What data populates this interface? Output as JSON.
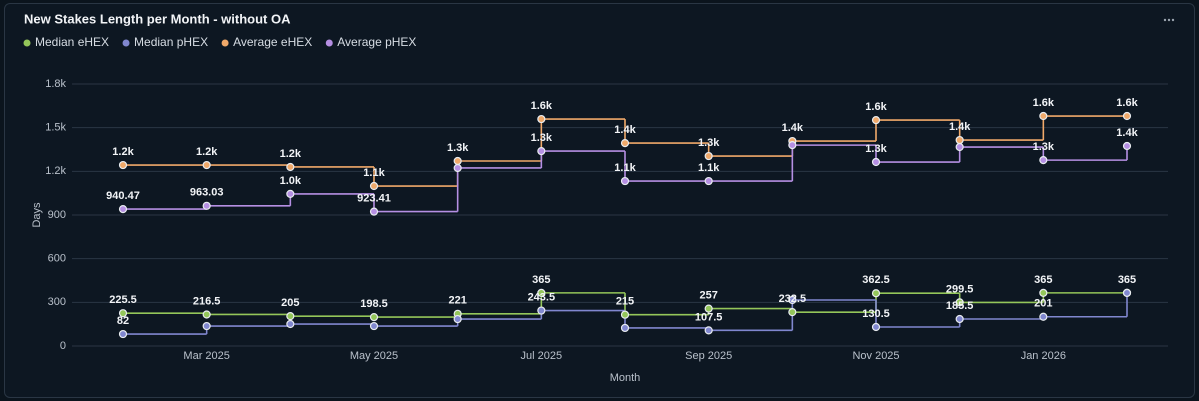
{
  "chart_data": {
    "type": "step-line",
    "title": "New Stakes Length per Month - without OA",
    "x_label": "Month",
    "y_label": "Days",
    "x": [
      "2025-02",
      "2025-03",
      "2025-04",
      "2025-05",
      "2025-06",
      "2025-07",
      "2025-08",
      "2025-09",
      "2025-10",
      "2025-11",
      "2025-12",
      "2026-01",
      "2026-02"
    ],
    "xticks": [
      {
        "value": "2025-03",
        "label": "Mar 2025"
      },
      {
        "value": "2025-05",
        "label": "May 2025"
      },
      {
        "value": "2025-07",
        "label": "Jul 2025"
      },
      {
        "value": "2025-09",
        "label": "Sep 2025"
      },
      {
        "value": "2025-11",
        "label": "Nov 2025"
      },
      {
        "value": "2026-01",
        "label": "Jan 2026"
      }
    ],
    "ylim": [
      0,
      1800
    ],
    "yticks": [
      0,
      300,
      600,
      900,
      {
        "value": 1200,
        "label": "1.2k"
      },
      {
        "value": 1500,
        "label": "1.5k"
      },
      {
        "value": 1800,
        "label": "1.8k"
      }
    ],
    "grid": true,
    "legend": "top-left",
    "series": [
      {
        "name": "Median eHEX",
        "color": "#94c65a",
        "values": [
          225.5,
          216.5,
          205,
          198.5,
          221,
          365,
          215,
          257,
          232.5,
          362.5,
          299.5,
          365,
          365
        ],
        "value_labels": [
          "225.5",
          "216.5",
          "205",
          "198.5",
          "221",
          "365",
          "215",
          "257",
          "232.5",
          "362.5",
          "299.5",
          "365",
          "365"
        ]
      },
      {
        "name": "Median pHEX",
        "color": "#8087cf",
        "values": [
          82,
          137,
          151,
          137,
          185,
          243.5,
          124,
          107.5,
          316,
          130.5,
          185.5,
          201,
          365
        ],
        "value_labels": [
          "82",
          null,
          null,
          null,
          null,
          "243.5",
          null,
          "107.5",
          null,
          "130.5",
          "185.5",
          "201",
          null
        ]
      },
      {
        "name": "Average eHEX",
        "color": "#f0a96a",
        "values": [
          1243,
          1243,
          1230,
          1099,
          1271,
          1559,
          1394,
          1305,
          1408,
          1552,
          1415,
          1580,
          1580
        ],
        "value_labels": [
          "1.2k",
          "1.2k",
          "1.2k",
          "1.1k",
          "1.3k",
          "1.6k",
          "1.4k",
          "1.3k",
          "1.4k",
          "1.6k",
          "1.4k",
          "1.6k",
          "1.6k"
        ]
      },
      {
        "name": "Average pHEX",
        "color": "#b58fe3",
        "values": [
          940.47,
          963.03,
          1045,
          923.41,
          1223,
          1339,
          1133,
          1133,
          1380,
          1264,
          1367,
          1277,
          1374
        ],
        "value_labels": [
          "940.47",
          "963.03",
          "1.0k",
          "923.41",
          null,
          "1.3k",
          "1.1k",
          "1.1k",
          null,
          "1.3k",
          null,
          "1.3k",
          "1.4k"
        ]
      }
    ]
  }
}
